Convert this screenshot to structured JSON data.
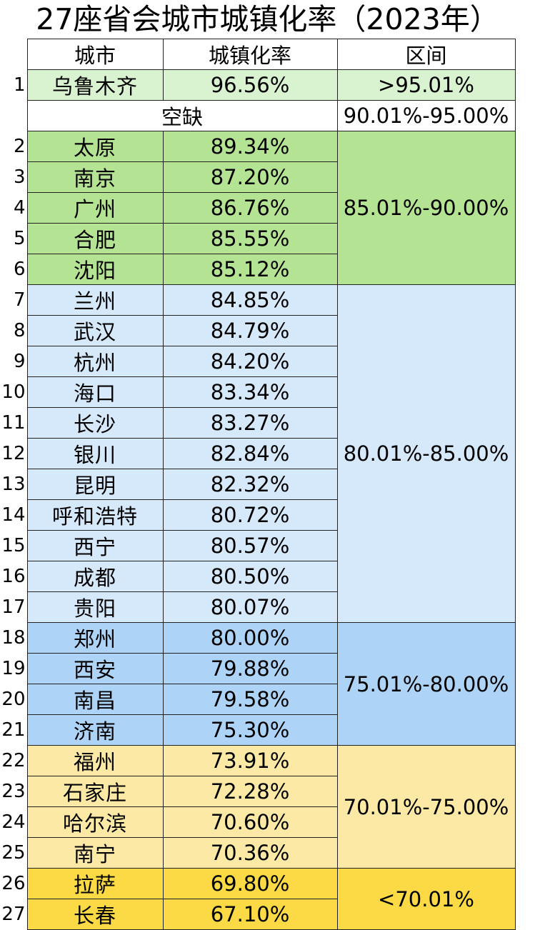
{
  "title": "27座省会城市城镇化率（2023年）",
  "headers": {
    "city": "城市",
    "rate": "城镇化率",
    "range": "区间"
  },
  "gap_label": "空缺",
  "colors": {
    "g95": "#d9f2d0",
    "g85": "#b4e493",
    "g80": "#d5e9fb",
    "g75": "#add3f7",
    "g70": "#fde9a6",
    "g_lt": "#fbda46"
  },
  "ranges": {
    "g95": ">95.01%",
    "gap": "90.01%-95.00%",
    "g85": "85.01%-90.00%",
    "g80": "80.01%-85.00%",
    "g75": "75.01%-80.00%",
    "g70": "70.01%-75.00%",
    "g_lt": "<70.01%"
  },
  "rows": [
    {
      "rank": "1",
      "city": "乌鲁木齐",
      "rate": "96.56%"
    },
    {
      "rank": "2",
      "city": "太原",
      "rate": "89.34%"
    },
    {
      "rank": "3",
      "city": "南京",
      "rate": "87.20%"
    },
    {
      "rank": "4",
      "city": "广州",
      "rate": "86.76%"
    },
    {
      "rank": "5",
      "city": "合肥",
      "rate": "85.55%"
    },
    {
      "rank": "6",
      "city": "沈阳",
      "rate": "85.12%"
    },
    {
      "rank": "7",
      "city": "兰州",
      "rate": "84.85%"
    },
    {
      "rank": "8",
      "city": "武汉",
      "rate": "84.79%"
    },
    {
      "rank": "9",
      "city": "杭州",
      "rate": "84.20%"
    },
    {
      "rank": "10",
      "city": "海口",
      "rate": "83.34%"
    },
    {
      "rank": "11",
      "city": "长沙",
      "rate": "83.27%"
    },
    {
      "rank": "12",
      "city": "银川",
      "rate": "82.84%"
    },
    {
      "rank": "13",
      "city": "昆明",
      "rate": "82.32%"
    },
    {
      "rank": "14",
      "city": "呼和浩特",
      "rate": "80.72%"
    },
    {
      "rank": "15",
      "city": "西宁",
      "rate": "80.57%"
    },
    {
      "rank": "16",
      "city": "成都",
      "rate": "80.50%"
    },
    {
      "rank": "17",
      "city": "贵阳",
      "rate": "80.07%"
    },
    {
      "rank": "18",
      "city": "郑州",
      "rate": "80.00%"
    },
    {
      "rank": "19",
      "city": "西安",
      "rate": "79.88%"
    },
    {
      "rank": "20",
      "city": "南昌",
      "rate": "79.58%"
    },
    {
      "rank": "21",
      "city": "济南",
      "rate": "75.30%"
    },
    {
      "rank": "22",
      "city": "福州",
      "rate": "73.91%"
    },
    {
      "rank": "23",
      "city": "石家庄",
      "rate": "72.28%"
    },
    {
      "rank": "24",
      "city": "哈尔滨",
      "rate": "70.60%"
    },
    {
      "rank": "25",
      "city": "南宁",
      "rate": "70.36%"
    },
    {
      "rank": "26",
      "city": "拉萨",
      "rate": "69.80%"
    },
    {
      "rank": "27",
      "city": "长春",
      "rate": "67.10%"
    }
  ]
}
